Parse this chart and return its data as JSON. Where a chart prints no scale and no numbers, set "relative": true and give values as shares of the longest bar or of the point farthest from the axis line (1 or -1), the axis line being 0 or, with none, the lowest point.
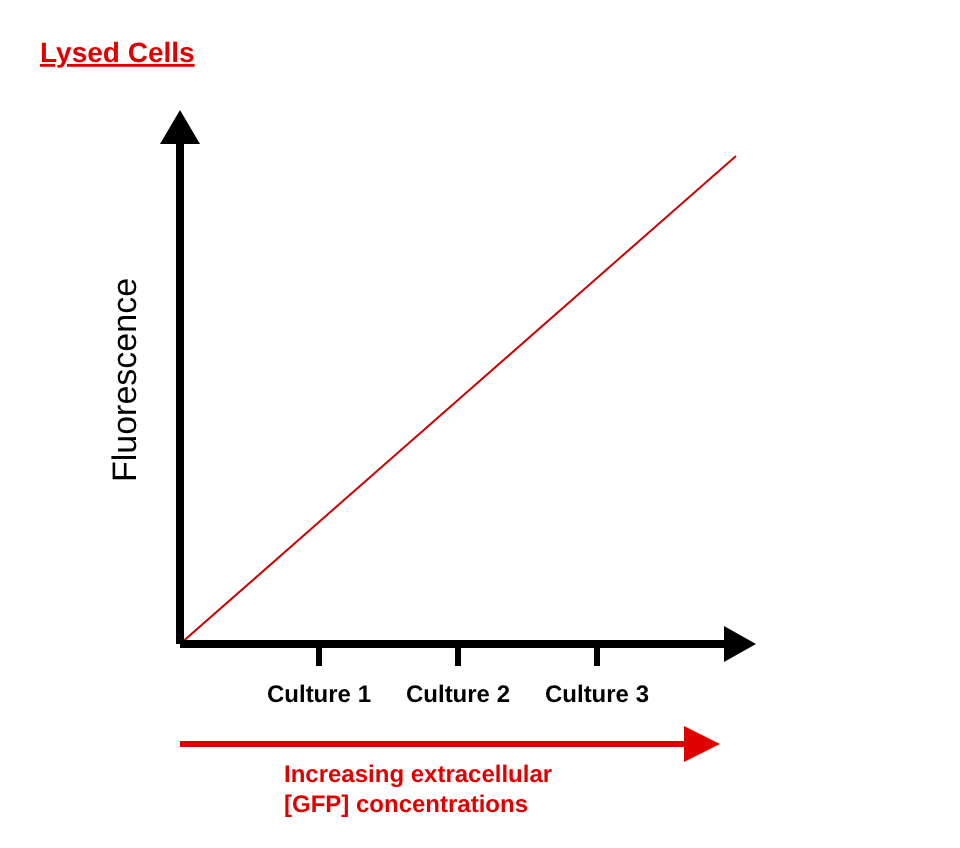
{
  "chart_data": {
    "type": "line",
    "title": "Lysed Cells",
    "ylabel": "Fluorescence",
    "relative": true,
    "categories": [
      null,
      "Culture 1",
      "Culture 2",
      "Culture 3",
      null
    ],
    "series": [
      {
        "color": "#cc0000",
        "values": [
          0,
          0.25,
          0.5,
          0.75,
          1
        ]
      }
    ],
    "annotations": [
      "Increasing extracellular [GFP] concentrations"
    ]
  }
}
